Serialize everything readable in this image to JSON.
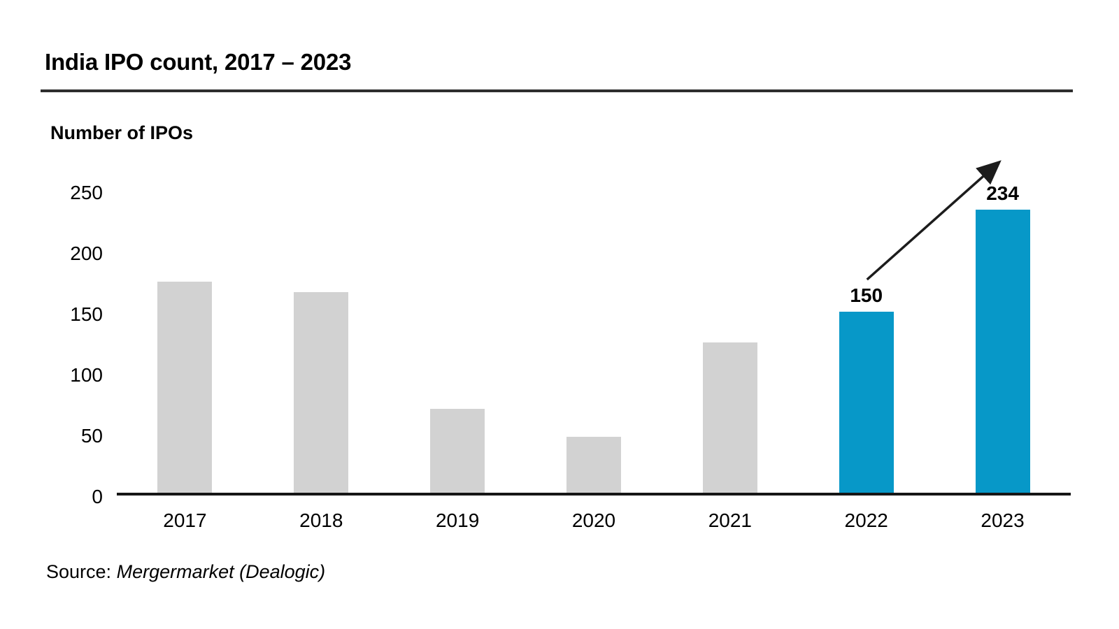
{
  "page": {
    "title": "India IPO count, 2017 – 2023",
    "source_prefix": "Source:",
    "source_text": "Mergermarket (Dealogic)"
  },
  "chart_data": {
    "type": "bar",
    "title": "India IPO count, 2017 – 2023",
    "ylabel": "Number of IPOs",
    "xlabel": "",
    "categories": [
      "2017",
      "2018",
      "2019",
      "2020",
      "2021",
      "2022",
      "2023"
    ],
    "values": [
      175,
      166,
      70,
      47,
      125,
      150,
      234
    ],
    "data_labels": {
      "2022": "150",
      "2023": "234"
    },
    "highlighted_categories": [
      "2022",
      "2023"
    ],
    "yticks": [
      0,
      50,
      100,
      150,
      200,
      250
    ],
    "ylim": [
      0,
      250
    ],
    "grid": false,
    "legend": false,
    "colors": {
      "default_bar": "#d2d2d2",
      "highlight_bar": "#0798c8",
      "axis_line": "#161616",
      "arrow": "#1c1c1c",
      "text": "#000000"
    },
    "annotation_arrow": {
      "from_category": "2022",
      "to_category": "2023"
    }
  }
}
